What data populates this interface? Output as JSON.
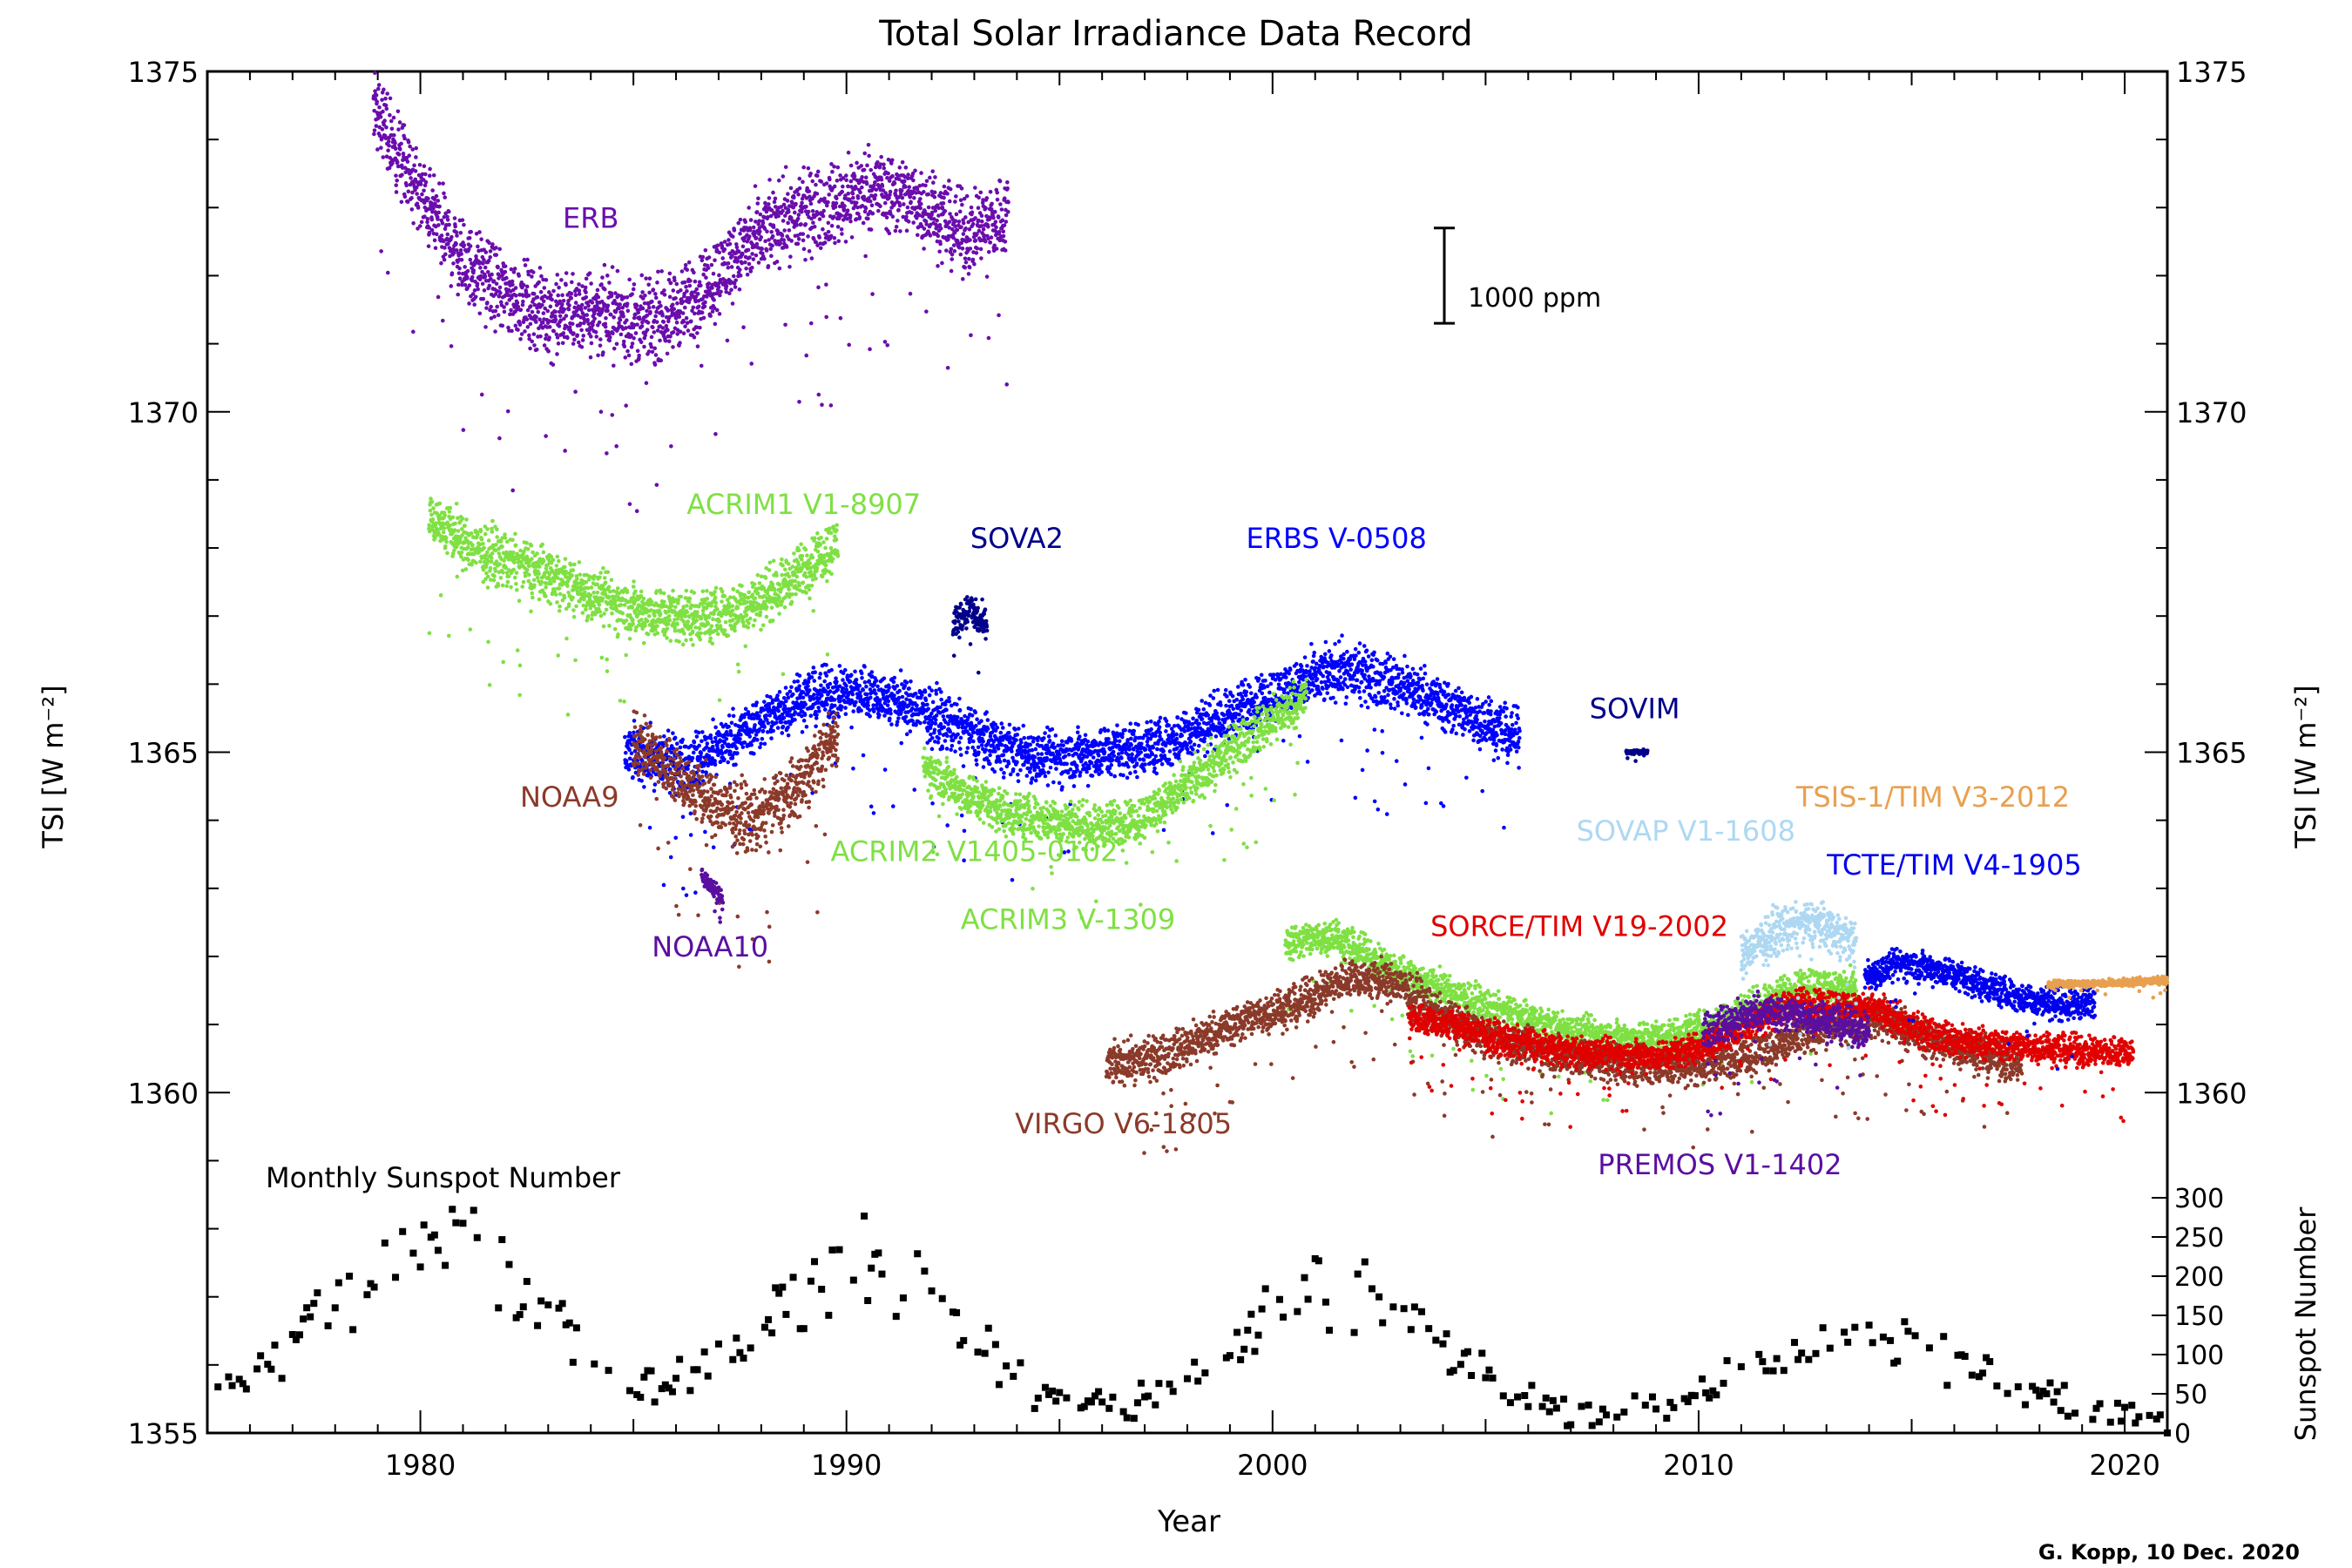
{
  "chart_data": {
    "type": "scatter",
    "title": "Total Solar Irradiance Data Record",
    "xlabel": "Year",
    "ylabel": "TSI [W m⁻²]",
    "ylabel_right_top": "TSI [W m⁻²]",
    "ylabel_right_bottom": "Sunspot Number",
    "xlim": [
      1975,
      2021
    ],
    "ylim": [
      1355,
      1375
    ],
    "x_ticks": [
      "1980",
      "1990",
      "2000",
      "2010",
      "2020"
    ],
    "y_ticks_left": [
      "1375",
      "1370",
      "1365",
      "1360",
      "1355"
    ],
    "y_ticks_right": [
      "1375",
      "1370",
      "1365",
      "1360"
    ],
    "sunspot_ticks": [
      "300",
      "250",
      "200",
      "150",
      "100",
      "50",
      "0"
    ],
    "sunspot_range": [
      0,
      300
    ],
    "scale_bar_label": "1000 ppm",
    "credit": "G. Kopp, 10 Dec. 2020",
    "sunspot_label": "Monthly Sunspot Number",
    "series": [
      {
        "name": "ERB",
        "color": "#6a0dad",
        "label_pos": [
          1984.0,
          1372.7
        ],
        "segments": [
          {
            "x0": 1978.9,
            "x1": 1993.8,
            "y": [
              1374.5,
              1373.2,
              1372.2,
              1371.7,
              1371.4,
              1371.5,
              1371.3,
              1371.6,
              1372.3,
              1372.8,
              1373.0,
              1373.3,
              1373.1,
              1372.6,
              1372.9
            ],
            "noise": 0.9
          }
        ]
      },
      {
        "name": "ACRIM1 V1-8907",
        "color": "#7fe043",
        "label_pos": [
          1989.0,
          1368.5
        ],
        "segments": [
          {
            "x0": 1980.2,
            "x1": 1989.8,
            "y": [
              1368.5,
              1368.0,
              1367.8,
              1367.6,
              1367.3,
              1367.1,
              1367.0,
              1367.0,
              1367.2,
              1367.6,
              1368.1
            ],
            "noise": 0.6
          }
        ]
      },
      {
        "name": "SOVA2",
        "color": "#00008b",
        "label_pos": [
          1994.0,
          1368.0
        ],
        "segments": [
          {
            "x0": 1992.5,
            "x1": 1993.3,
            "y": [
              1366.9,
              1367.1,
              1366.8
            ],
            "noise": 0.4
          }
        ]
      },
      {
        "name": "ERBS V-0508",
        "color": "#0000ff",
        "label_pos": [
          2001.5,
          1368.0
        ],
        "segments": [
          {
            "x0": 1984.8,
            "x1": 2005.8,
            "y": [
              1365.0,
              1364.8,
              1365.3,
              1365.8,
              1365.9,
              1365.6,
              1365.2,
              1364.9,
              1365.0,
              1365.1,
              1365.5,
              1365.9,
              1366.2,
              1366.0,
              1365.6,
              1365.2
            ],
            "noise": 0.6
          }
        ]
      },
      {
        "name": "NOAA9",
        "color": "#8b3a2a",
        "label_pos": [
          1983.5,
          1364.2
        ],
        "segments": [
          {
            "x0": 1985.0,
            "x1": 1989.8,
            "y": [
              1365.2,
              1364.7,
              1364.2,
              1364.0,
              1364.5,
              1365.3
            ],
            "noise": 0.7
          }
        ]
      },
      {
        "name": "NOAA10",
        "color": "#5a0fa0",
        "label_pos": [
          1986.8,
          1362.0
        ],
        "segments": [
          {
            "x0": 1986.6,
            "x1": 1987.1,
            "y": [
              1363.2,
              1362.8
            ],
            "noise": 0.2
          }
        ]
      },
      {
        "name": "ACRIM2 V1405-0102",
        "color": "#7fe043",
        "label_pos": [
          1993.0,
          1363.4
        ],
        "segments": [
          {
            "x0": 1991.8,
            "x1": 2000.8,
            "y": [
              1364.8,
              1364.4,
              1364.1,
              1364.0,
              1363.9,
              1364.0,
              1364.4,
              1364.9,
              1365.4,
              1365.8
            ],
            "noise": 0.5
          }
        ]
      },
      {
        "name": "ACRIM3 V-1309",
        "color": "#7fe043",
        "label_pos": [
          1995.2,
          1362.4
        ],
        "segments": [
          {
            "x0": 2000.3,
            "x1": 2013.7,
            "y": [
              1362.2,
              1362.3,
              1361.9,
              1361.6,
              1361.3,
              1361.1,
              1360.9,
              1360.8,
              1360.8,
              1361.0,
              1361.3,
              1361.6,
              1361.5
            ],
            "noise": 0.4
          }
        ]
      },
      {
        "name": "VIRGO V6-1805",
        "color": "#8b3a2a",
        "label_pos": [
          1996.5,
          1359.4
        ],
        "segments": [
          {
            "x0": 1996.1,
            "x1": 2017.6,
            "y": [
              1360.4,
              1360.5,
              1360.8,
              1361.1,
              1361.3,
              1361.7,
              1361.6,
              1361.1,
              1360.8,
              1360.6,
              1360.5,
              1360.4,
              1360.4,
              1360.5,
              1360.7,
              1361.0,
              1361.1,
              1360.8,
              1360.6,
              1360.4
            ],
            "noise": 0.45
          }
        ]
      },
      {
        "name": "SORCE/TIM V19-2002",
        "color": "#e00000",
        "label_pos": [
          2007.2,
          1362.3
        ],
        "segments": [
          {
            "x0": 2003.2,
            "x1": 2020.2,
            "y": [
              1361.1,
              1361.0,
              1360.8,
              1360.7,
              1360.6,
              1360.55,
              1360.55,
              1360.7,
              1361.0,
              1361.3,
              1361.3,
              1361.2,
              1360.9,
              1360.75,
              1360.7,
              1360.65,
              1360.6,
              1360.6
            ],
            "noise": 0.35
          }
        ]
      },
      {
        "name": "SOVIM",
        "color": "#00008b",
        "label_pos": [
          2008.5,
          1365.5
        ],
        "segments": [
          {
            "x0": 2008.3,
            "x1": 2008.8,
            "y": [
              1365.0,
              1365.0
            ],
            "noise": 0.05
          }
        ]
      },
      {
        "name": "SOVAP V1-1608",
        "color": "#aed8f2",
        "label_pos": [
          2009.7,
          1363.7
        ],
        "segments": [
          {
            "x0": 2011.0,
            "x1": 2013.7,
            "y": [
              1362.0,
              1362.4,
              1362.5,
              1362.2
            ],
            "noise": 0.5
          }
        ]
      },
      {
        "name": "TCTE/TIM V4-1905",
        "color": "#0000ee",
        "label_pos": [
          2016.0,
          1363.2
        ],
        "segments": [
          {
            "x0": 2013.9,
            "x1": 2019.3,
            "y": [
              1361.7,
              1361.9,
              1361.8,
              1361.6,
              1361.4,
              1361.3,
              1361.3
            ],
            "noise": 0.35
          }
        ]
      },
      {
        "name": "TSIS-1/TIM V3-2012",
        "color": "#e8a050",
        "label_pos": [
          2015.5,
          1364.2
        ],
        "segments": [
          {
            "x0": 2018.2,
            "x1": 2021.0,
            "y": [
              1361.6,
              1361.6,
              1361.65
            ],
            "noise": 0.08
          }
        ]
      },
      {
        "name": "PREMOS V1-1402",
        "color": "#5a0fa0",
        "label_pos": [
          2010.5,
          1358.8
        ],
        "segments": [
          {
            "x0": 2010.1,
            "x1": 2014.0,
            "y": [
              1360.9,
              1361.2,
              1361.1,
              1360.9
            ],
            "noise": 0.4
          }
        ]
      }
    ],
    "sunspot_cycle_peaks": [
      {
        "center": 1980.3,
        "peak": 230,
        "width": 3.8
      },
      {
        "center": 1990.4,
        "peak": 210,
        "width": 3.4
      },
      {
        "center": 2001.4,
        "peak": 175,
        "width": 3.6
      },
      {
        "center": 2014.0,
        "peak": 115,
        "width": 4.2
      }
    ]
  }
}
